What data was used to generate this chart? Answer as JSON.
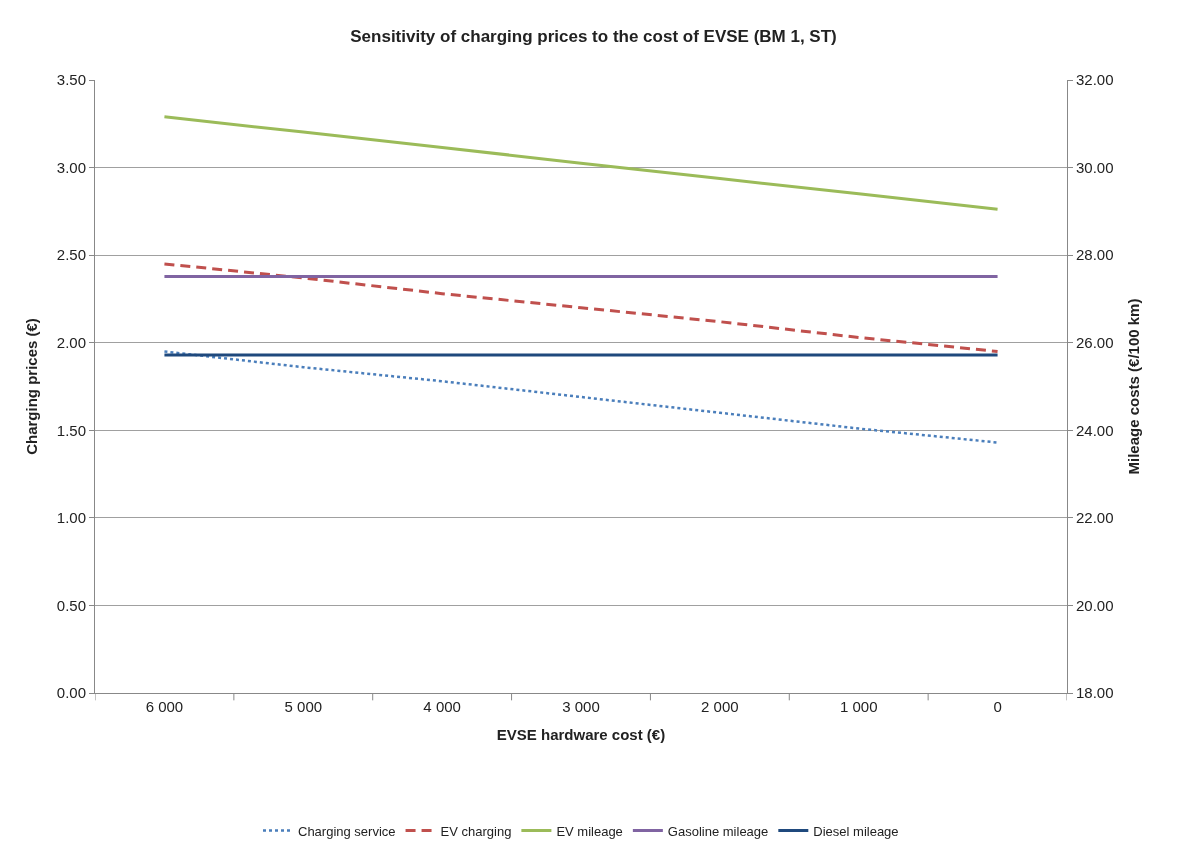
{
  "chart_data": {
    "type": "line",
    "title": "Sensitivity of charging prices to the cost of EVSE (BM 1, ST)",
    "xlabel": "EVSE hardware cost (€)",
    "ylabel": "Charging prices (€)",
    "y2label": "Mileage costs (€/100 km)",
    "categories": [
      "6 000",
      "5 000",
      "4 000",
      "3 000",
      "2 000",
      "1 000",
      "0"
    ],
    "series": [
      {
        "name": "Charging service",
        "color": "#4a7ebb",
        "line_style": "dotted",
        "values": [
          1.95,
          1.86,
          1.78,
          1.69,
          1.6,
          1.51,
          1.43
        ]
      },
      {
        "name": "EV charging",
        "color": "#c0504d",
        "line_style": "dashed",
        "values": [
          2.45,
          2.37,
          2.28,
          2.2,
          2.12,
          2.03,
          1.95
        ]
      },
      {
        "name": "EV mileage",
        "color": "#9bbb59",
        "line_style": "solid",
        "axis": "y2",
        "values": [
          31.16,
          30.81,
          30.46,
          30.1,
          29.75,
          29.4,
          29.05
        ]
      },
      {
        "name": "Gasoline mileage",
        "color": "#8064a2",
        "line_style": "solid",
        "axis": "y2",
        "values": [
          27.51,
          27.51,
          27.51,
          27.51,
          27.51,
          27.51,
          27.51
        ]
      },
      {
        "name": "Diesel mileage",
        "color": "#1f497d",
        "line_style": "solid",
        "axis": "y2",
        "values": [
          25.72,
          25.72,
          25.72,
          25.72,
          25.72,
          25.72,
          25.72
        ]
      }
    ],
    "ylim": [
      0,
      3.5
    ],
    "yticks": [
      {
        "value": 0,
        "label": "0.00"
      },
      {
        "value": 0.5,
        "label": "0.50"
      },
      {
        "value": 1,
        "label": "1.00"
      },
      {
        "value": 1.5,
        "label": "1.50"
      },
      {
        "value": 2,
        "label": "2.00"
      },
      {
        "value": 2.5,
        "label": "2.50"
      },
      {
        "value": 3,
        "label": "3.00"
      },
      {
        "value": 3.5,
        "label": "3.50"
      }
    ],
    "y2lim": [
      18,
      32
    ],
    "y2ticks": [
      {
        "value": 18,
        "label": "18.00"
      },
      {
        "value": 20,
        "label": "20.00"
      },
      {
        "value": 22,
        "label": "22.00"
      },
      {
        "value": 24,
        "label": "24.00"
      },
      {
        "value": 26,
        "label": "26.00"
      },
      {
        "value": 28,
        "label": "28.00"
      },
      {
        "value": 30,
        "label": "30.00"
      },
      {
        "value": 32,
        "label": "32.00"
      }
    ],
    "grid": "y",
    "legend": "bottom",
    "marker": "none"
  }
}
